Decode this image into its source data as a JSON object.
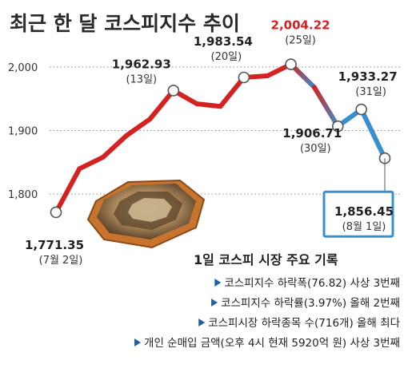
{
  "chart_data": {
    "type": "line",
    "title": "최근 한 달 코스피지수 추이",
    "ylim": [
      1760,
      2030
    ],
    "y_ticks": [
      {
        "v": 2000,
        "label": "2,000"
      },
      {
        "v": 1900,
        "label": "1,900"
      },
      {
        "v": 1800,
        "label": "1,800"
      }
    ],
    "points": [
      {
        "value": 1771.35
      },
      {
        "value": 1840
      },
      {
        "value": 1858
      },
      {
        "value": 1892
      },
      {
        "value": 1918
      },
      {
        "value": 1962.93
      },
      {
        "value": 1942
      },
      {
        "value": 1938
      },
      {
        "value": 1983.54
      },
      {
        "value": 1986
      },
      {
        "value": 2004.22
      },
      {
        "value": 1968
      },
      {
        "value": 1906.71
      },
      {
        "value": 1933.27
      },
      {
        "value": 1856.45
      }
    ],
    "labeled_points": [
      {
        "index": 0,
        "value_label": "1,771.35",
        "date_label": "(7월 2일)"
      },
      {
        "index": 5,
        "value_label": "1,962.93",
        "date_label": "(13일)"
      },
      {
        "index": 8,
        "value_label": "1,983.54",
        "date_label": "(20일)"
      },
      {
        "index": 10,
        "value_label": "2,004.22",
        "date_label": "(25일)",
        "highlight": "red"
      },
      {
        "index": 12,
        "value_label": "1,906.71",
        "date_label": "(30일)"
      },
      {
        "index": 13,
        "value_label": "1,933.27",
        "date_label": "(31일)"
      },
      {
        "index": 14,
        "value_label": "1,856.45",
        "date_label": "(8월 1일)",
        "highlight": "box"
      }
    ],
    "colors": {
      "up": "#d42222",
      "down": "#3a8fcf",
      "grid": "#8a8a8a",
      "highlight_box": "#3a8fcf"
    }
  },
  "info": {
    "title": "1일 코스피 시장 주요 기록",
    "items": [
      "코스피지수 하락폭(76.82) 사상 3번째",
      "코스피지수 하락률(3.97%) 올해 2번째",
      "코스피시장 하락종목 수(716개) 올해 최다",
      "개인 순매입 금액(오후 4시 현재 5920억 원) 사상 3번째"
    ]
  }
}
